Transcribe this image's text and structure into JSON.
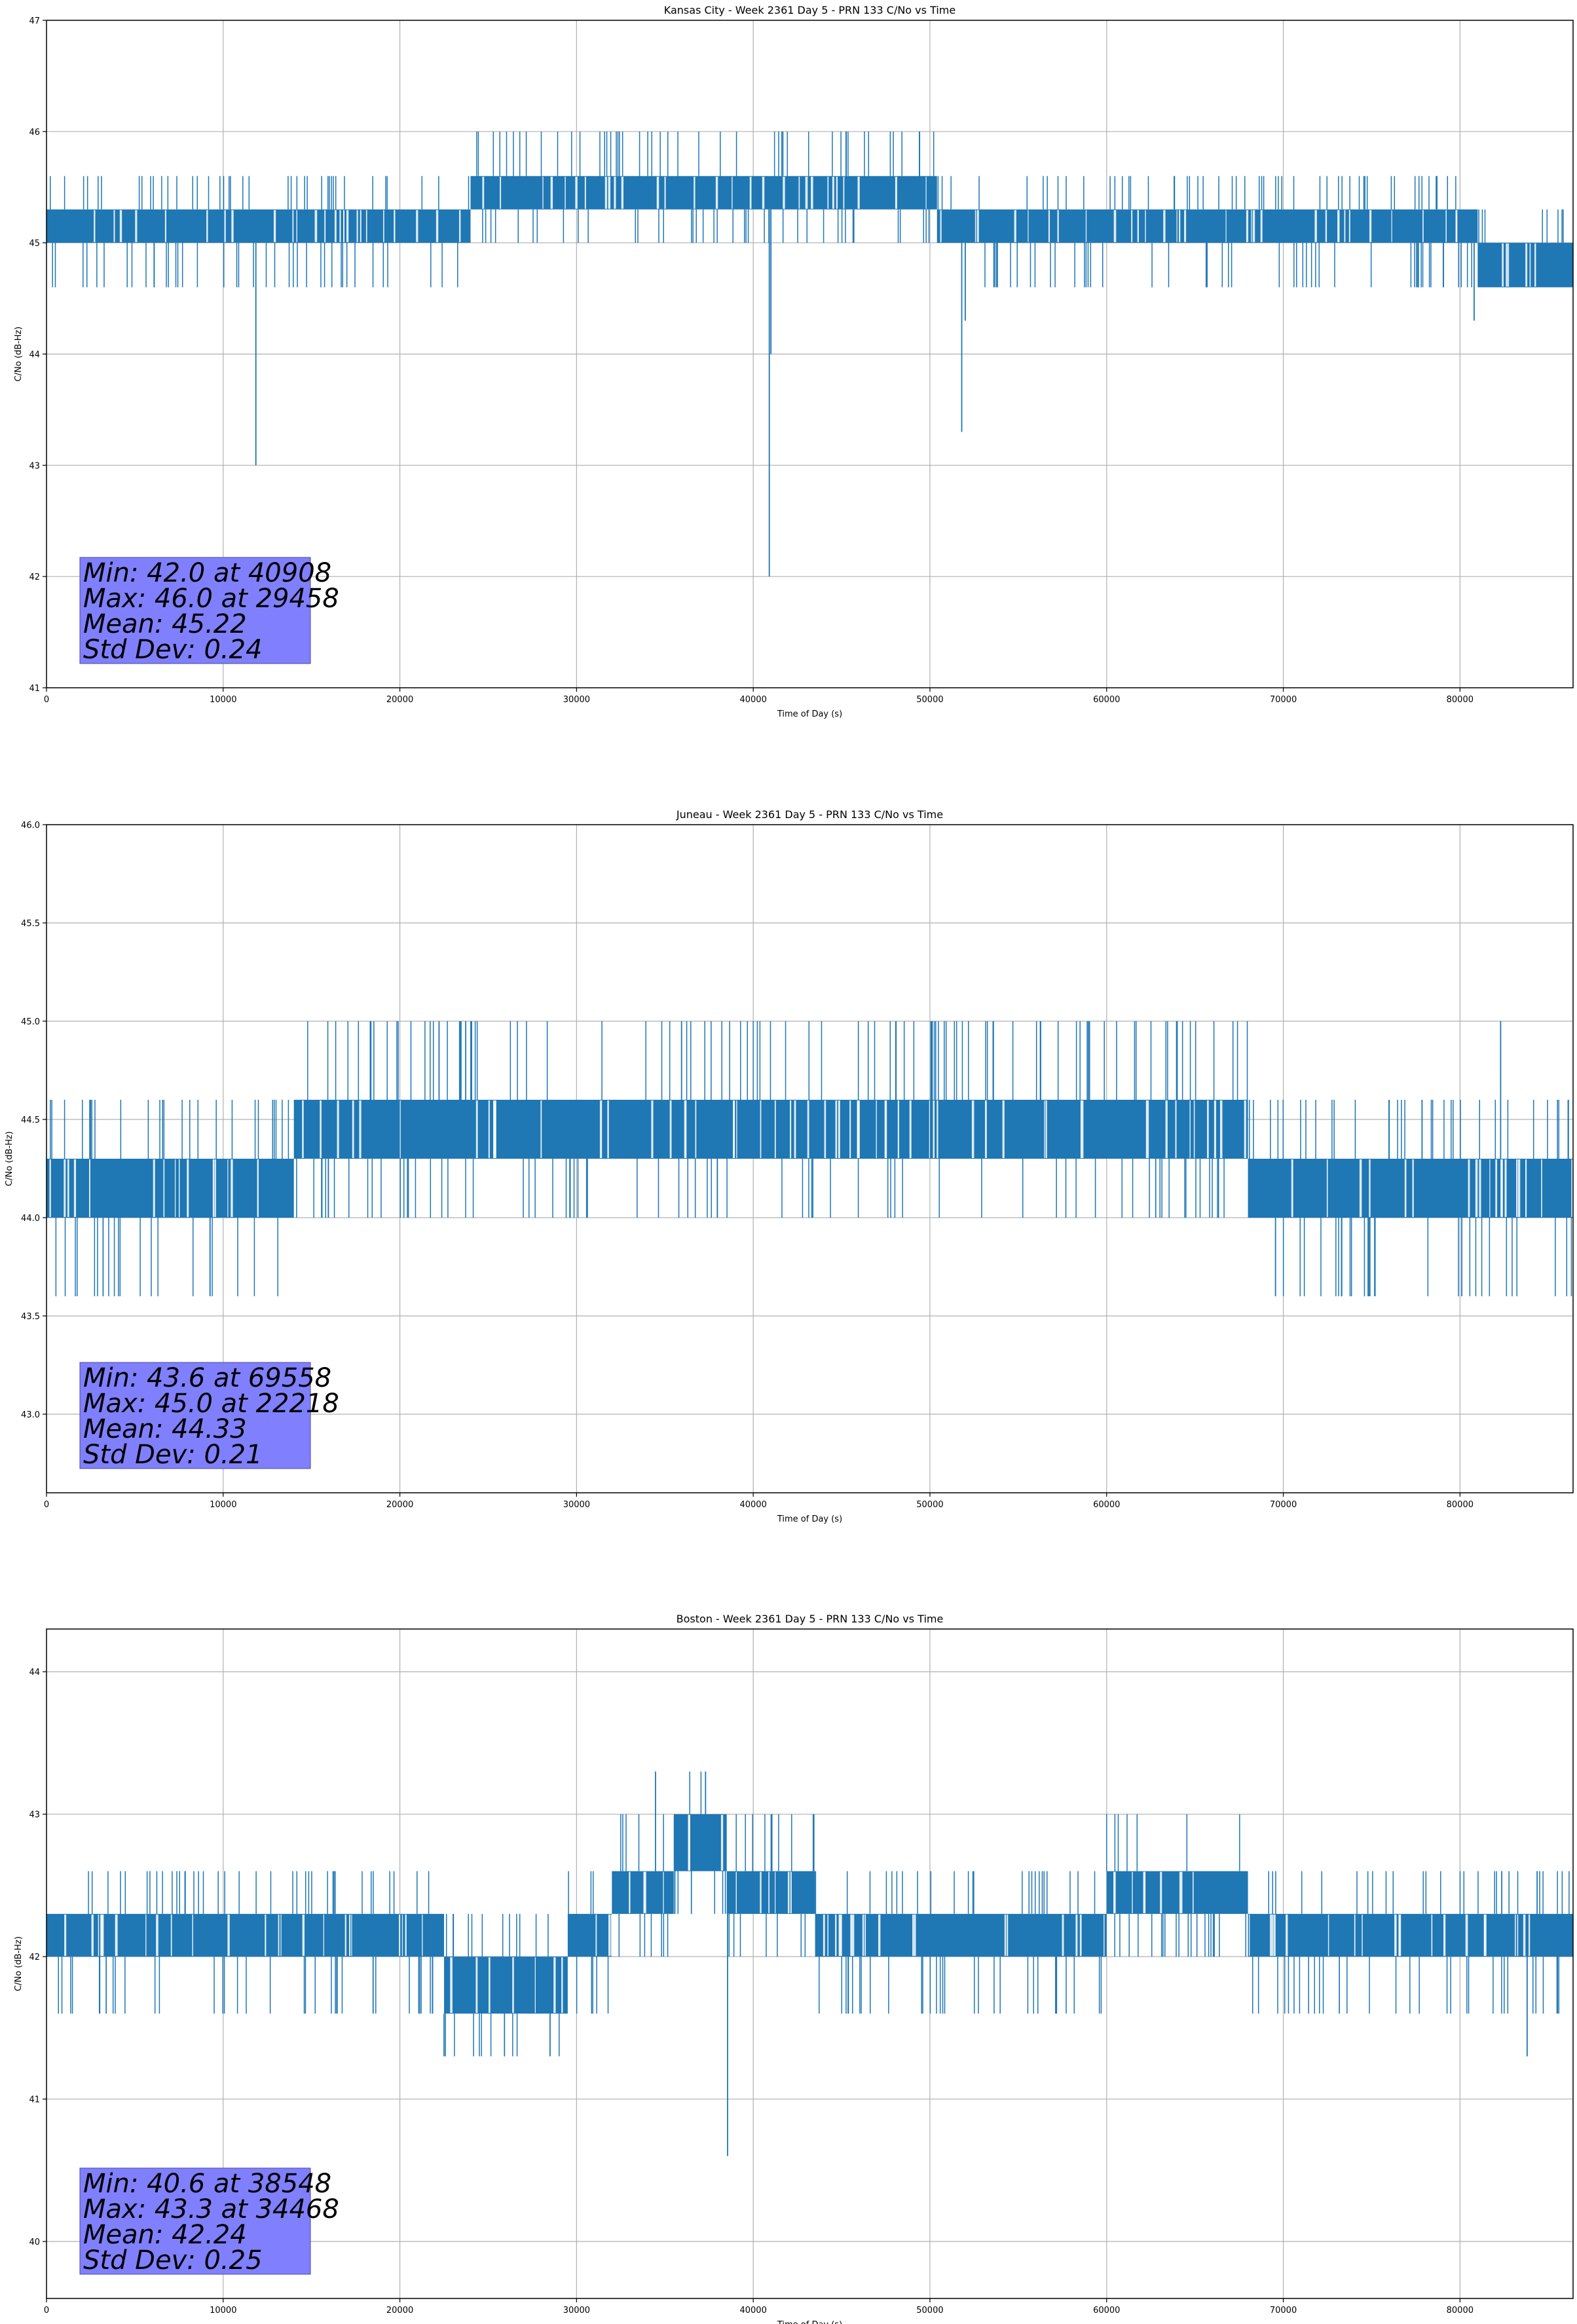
{
  "colors": {
    "line": "#1f77b4",
    "grid": "#b0b0b0",
    "statbox": "#8080ff"
  },
  "chart_data": [
    {
      "type": "line",
      "title": "Kansas City - Week 2361 Day 5 - PRN 133 C/No vs Time",
      "xlabel": "Time of Day (s)",
      "ylabel": "C/No (dB-Hz)",
      "xlim": [
        0,
        86400
      ],
      "ylim": [
        41,
        47
      ],
      "xticks": [
        0,
        10000,
        20000,
        30000,
        40000,
        50000,
        60000,
        70000,
        80000
      ],
      "yticks": [
        41,
        42,
        43,
        44,
        45,
        46,
        47
      ],
      "ytick_labels": [
        "41",
        "42",
        "43",
        "44",
        "45",
        "46",
        "47"
      ],
      "levels": [
        44.6,
        45.0,
        45.3,
        45.6,
        46.0
      ],
      "segments": [
        {
          "x0": 0,
          "x1": 24000,
          "lo": 45.0,
          "hi": 45.3
        },
        {
          "x0": 24000,
          "x1": 50400,
          "lo": 45.3,
          "hi": 45.6
        },
        {
          "x0": 50400,
          "x1": 81000,
          "lo": 45.0,
          "hi": 45.3
        },
        {
          "x0": 81000,
          "x1": 86400,
          "lo": 44.6,
          "hi": 45.0
        }
      ],
      "spikes": [
        {
          "x": 11850,
          "y": 43.0
        },
        {
          "x": 40908,
          "y": 42.0
        },
        {
          "x": 41000,
          "y": 44.0
        },
        {
          "x": 51800,
          "y": 43.3
        },
        {
          "x": 52000,
          "y": 44.3
        },
        {
          "x": 80800,
          "y": 44.3
        }
      ],
      "stats": [
        "Min: 42.0 at 40908",
        "Max: 46.0 at 29458",
        "Mean: 45.22",
        "Std Dev: 0.24"
      ]
    },
    {
      "type": "line",
      "title": "Juneau - Week 2361 Day 5 - PRN 133 C/No vs Time",
      "xlabel": "Time of Day (s)",
      "ylabel": "C/No (dB-Hz)",
      "xlim": [
        0,
        86400
      ],
      "ylim": [
        42.6,
        46.0
      ],
      "xticks": [
        0,
        10000,
        20000,
        30000,
        40000,
        50000,
        60000,
        70000,
        80000
      ],
      "yticks": [
        43.0,
        43.5,
        44.0,
        44.5,
        45.0,
        45.5,
        46.0
      ],
      "ytick_labels": [
        "43.0",
        "43.5",
        "44.0",
        "44.5",
        "45.0",
        "45.5",
        "46.0"
      ],
      "levels": [
        43.6,
        44.0,
        44.3,
        44.6,
        45.0
      ],
      "segments": [
        {
          "x0": 0,
          "x1": 14000,
          "lo": 44.0,
          "hi": 44.3
        },
        {
          "x0": 14000,
          "x1": 68000,
          "lo": 44.3,
          "hi": 44.6
        },
        {
          "x0": 68000,
          "x1": 86400,
          "lo": 44.0,
          "hi": 44.3
        }
      ],
      "spikes": [
        {
          "x": 22218,
          "y": 45.0
        },
        {
          "x": 69558,
          "y": 43.6
        },
        {
          "x": 80100,
          "y": 43.6
        },
        {
          "x": 82300,
          "y": 45.0
        }
      ],
      "stats": [
        "Min: 43.6 at 69558",
        "Max: 45.0 at 22218",
        "Mean: 44.33",
        "Std Dev: 0.21"
      ]
    },
    {
      "type": "line",
      "title": "Boston - Week 2361 Day 5 - PRN 133 C/No vs Time",
      "xlabel": "Time of Day (s)",
      "ylabel": "C/No (dB-Hz)",
      "xlim": [
        0,
        86400
      ],
      "ylim": [
        39.6,
        44.3
      ],
      "xticks": [
        0,
        10000,
        20000,
        30000,
        40000,
        50000,
        60000,
        70000,
        80000
      ],
      "yticks": [
        40,
        41,
        42,
        43,
        44
      ],
      "ytick_labels": [
        "40",
        "41",
        "42",
        "43",
        "44"
      ],
      "levels": [
        41.3,
        41.6,
        42.0,
        42.3,
        42.6,
        43.0,
        43.3
      ],
      "segments": [
        {
          "x0": 0,
          "x1": 22500,
          "lo": 42.0,
          "hi": 42.3
        },
        {
          "x0": 22500,
          "x1": 29500,
          "lo": 41.6,
          "hi": 42.0
        },
        {
          "x0": 29500,
          "x1": 32000,
          "lo": 42.0,
          "hi": 42.3
        },
        {
          "x0": 32000,
          "x1": 35500,
          "lo": 42.3,
          "hi": 42.6
        },
        {
          "x0": 35500,
          "x1": 38500,
          "lo": 42.6,
          "hi": 43.0
        },
        {
          "x0": 38500,
          "x1": 43500,
          "lo": 42.3,
          "hi": 42.6
        },
        {
          "x0": 43500,
          "x1": 60000,
          "lo": 42.0,
          "hi": 42.3
        },
        {
          "x0": 60000,
          "x1": 68000,
          "lo": 42.3,
          "hi": 42.6
        },
        {
          "x0": 68000,
          "x1": 86400,
          "lo": 42.0,
          "hi": 42.3
        }
      ],
      "spikes": [
        {
          "x": 38548,
          "y": 40.6
        },
        {
          "x": 34468,
          "y": 43.3
        },
        {
          "x": 37300,
          "y": 43.3
        },
        {
          "x": 22500,
          "y": 41.3
        },
        {
          "x": 28500,
          "y": 41.3
        },
        {
          "x": 83800,
          "y": 41.3
        }
      ],
      "stats": [
        "Min: 40.6 at 38548",
        "Max: 43.3 at 34468",
        "Mean: 42.24",
        "Std Dev: 0.25"
      ]
    }
  ]
}
